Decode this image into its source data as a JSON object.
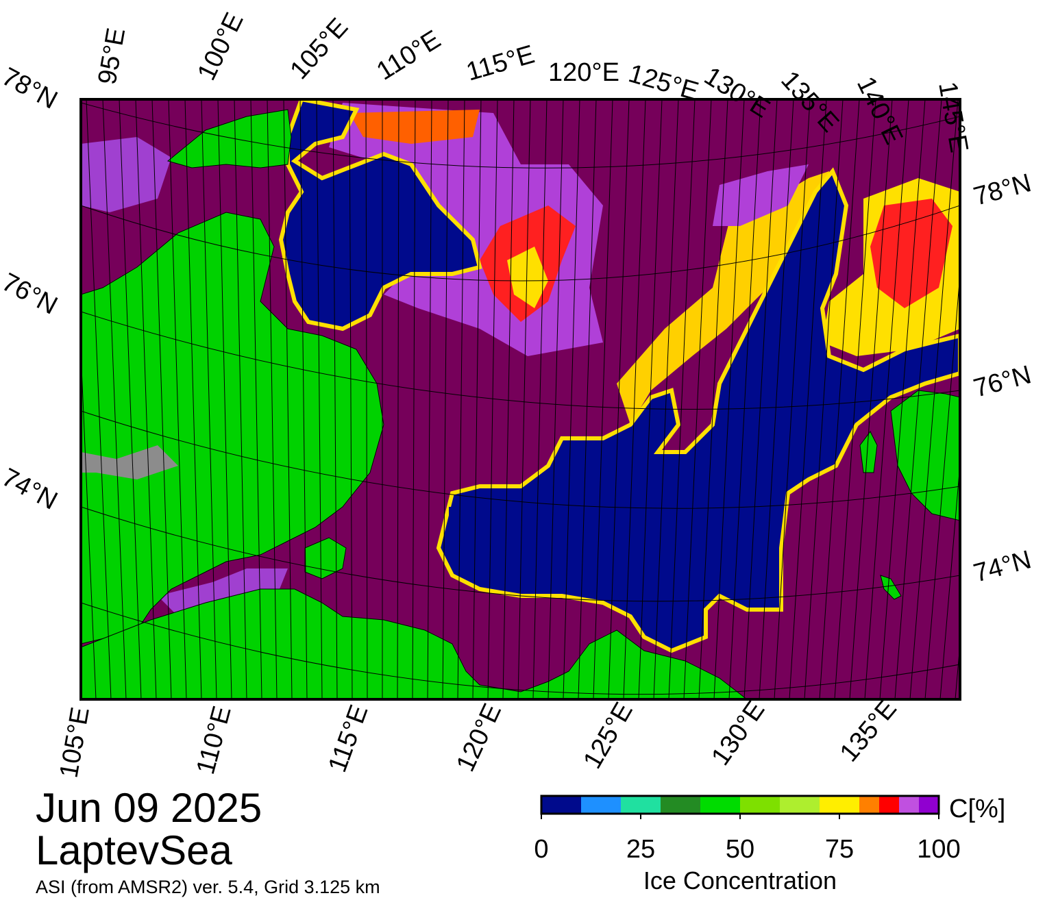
{
  "title": {
    "date": "Jun 09 2025",
    "region": "LaptevSea",
    "product": "ASI (from AMSR2) ver. 5.4,  Grid 3.125 km"
  },
  "map": {
    "top_lon_labels": [
      "95°E",
      "100°E",
      "105°E",
      "110°E",
      "115°E",
      "120°E",
      "125°E",
      "130°E",
      "135°E",
      "140°E",
      "145°E"
    ],
    "bottom_lon_labels": [
      "105°E",
      "110°E",
      "115°E",
      "120°E",
      "125°E",
      "130°E",
      "135°E"
    ],
    "left_lat_labels": [
      "78°N",
      "76°N",
      "74°N"
    ],
    "right_lat_labels": [
      "78°N",
      "76°N",
      "74°N"
    ],
    "colors": {
      "ice_100": "#76005a",
      "land": "#00d200",
      "land_ice": "#8c8c8c",
      "open_water": "#000a8c"
    }
  },
  "colorbar": {
    "title": "Ice Concentration",
    "unit": "C[%]",
    "ticks": [
      "0",
      "25",
      "50",
      "75",
      "100"
    ],
    "bins": [
      {
        "from": 0,
        "to": 10,
        "color": "#000a8c"
      },
      {
        "from": 10,
        "to": 20,
        "color": "#1e90ff"
      },
      {
        "from": 20,
        "to": 30,
        "color": "#20e0a0"
      },
      {
        "from": 30,
        "to": 40,
        "color": "#238b23"
      },
      {
        "from": 40,
        "to": 50,
        "color": "#00dc00"
      },
      {
        "from": 50,
        "to": 60,
        "color": "#7ee000"
      },
      {
        "from": 60,
        "to": 70,
        "color": "#aeee2e"
      },
      {
        "from": 70,
        "to": 80,
        "color": "#ffee00"
      },
      {
        "from": 80,
        "to": 85,
        "color": "#ff8000"
      },
      {
        "from": 85,
        "to": 90,
        "color": "#ff0000"
      },
      {
        "from": 90,
        "to": 95,
        "color": "#c050e0"
      },
      {
        "from": 95,
        "to": 100,
        "color": "#9000d0"
      }
    ]
  }
}
